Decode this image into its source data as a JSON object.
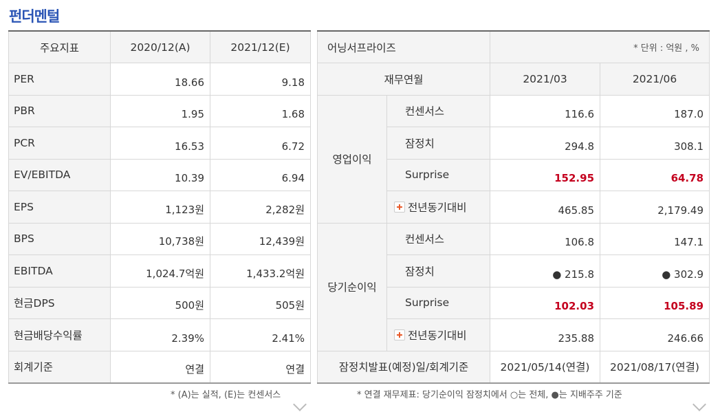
{
  "title": "펀더멘털",
  "fundamentals": {
    "headers": [
      "주요지표",
      "2020/12(A)",
      "2021/12(E)"
    ],
    "rows": [
      {
        "label": "PER",
        "a": "18.66",
        "e": "9.18"
      },
      {
        "label": "PBR",
        "a": "1.95",
        "e": "1.68"
      },
      {
        "label": "PCR",
        "a": "16.53",
        "e": "6.72"
      },
      {
        "label": "EV/EBITDA",
        "a": "10.39",
        "e": "6.94"
      },
      {
        "label": "EPS",
        "a": "1,123원",
        "e": "2,282원"
      },
      {
        "label": "BPS",
        "a": "10,738원",
        "e": "12,439원"
      },
      {
        "label": "EBITDA",
        "a": "1,024.7억원",
        "e": "1,433.2억원"
      },
      {
        "label": "현금DPS",
        "a": "500원",
        "e": "505원"
      },
      {
        "label": "현금배당수익률",
        "a": "2.39%",
        "e": "2.41%"
      },
      {
        "label": "회계기준",
        "a": "연결",
        "e": "연결"
      }
    ],
    "note": "* (A)는 실적, (E)는 컨센서스"
  },
  "earnings": {
    "title": "어닝서프라이즈",
    "unit": "* 단위 : 억원 , %",
    "col_label": "재무연월",
    "periods": [
      "2021/03",
      "2021/06"
    ],
    "groups": [
      {
        "name": "영업이익",
        "rows": [
          {
            "label": "컨센서스",
            "v1": "116.6",
            "v2": "187.0"
          },
          {
            "label": "잠정치",
            "v1": "294.8",
            "v2": "308.1"
          },
          {
            "label": "Surprise",
            "v1": "152.95",
            "v2": "64.78"
          },
          {
            "label": "전년동기대비",
            "v1": "465.85",
            "v2": "2,179.49"
          }
        ]
      },
      {
        "name": "당기순이익",
        "rows": [
          {
            "label": "컨센서스",
            "v1": "106.8",
            "v2": "147.1"
          },
          {
            "label": "잠정치",
            "v1": "● 215.8",
            "v2": "● 302.9"
          },
          {
            "label": "Surprise",
            "v1": "102.03",
            "v2": "105.89"
          },
          {
            "label": "전년동기대비",
            "v1": "235.88",
            "v2": "246.66"
          }
        ]
      }
    ],
    "footer_label": "잠정치발표(예정)일/회계기준",
    "footer_values": [
      "2021/05/14(연결)",
      "2021/08/17(연결)"
    ],
    "note": "* 연결 재무제표: 당기순이익 잠정치에서 ○는 전체, ●는 지배주주 기준"
  },
  "colors": {
    "title": "#2b55b5",
    "surprise": "#c4001e",
    "plus_icon": "#e85a2a"
  },
  "icons": {
    "plus": "plus-icon",
    "more": "chevron-down-icon"
  }
}
